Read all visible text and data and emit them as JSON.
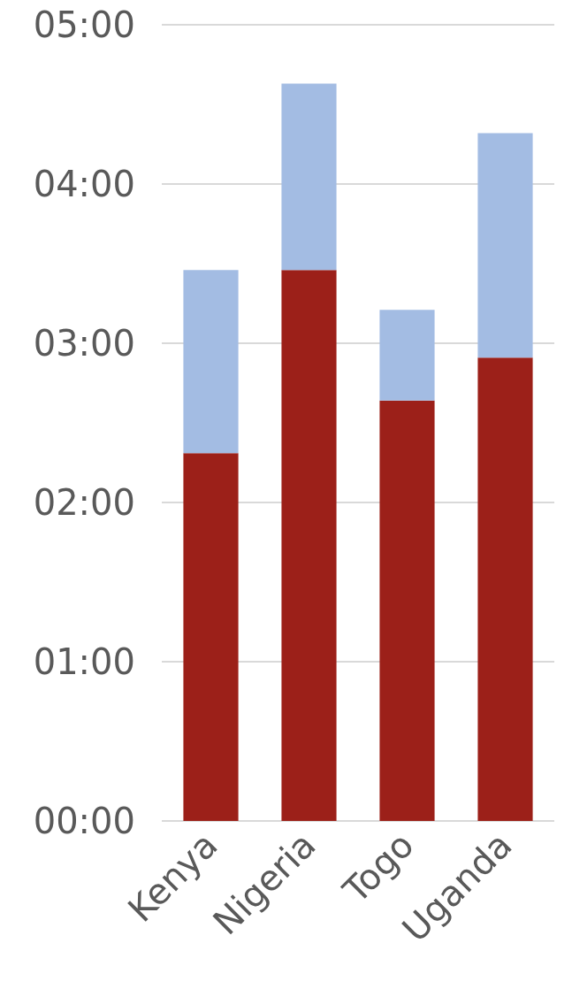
{
  "chart_data": {
    "type": "bar",
    "stacked": true,
    "categories": [
      "Kenya",
      "Nigeria",
      "Togo",
      "Uganda"
    ],
    "series": [
      {
        "color": "#9c2019",
        "values": [
          2.31,
          3.46,
          2.64,
          2.91
        ]
      },
      {
        "color": "#a3bce3",
        "values": [
          1.15,
          1.17,
          0.57,
          1.41
        ]
      }
    ],
    "ylim": [
      0,
      5
    ],
    "yticks": [
      {
        "value": 0,
        "label": "00:00"
      },
      {
        "value": 1,
        "label": "01:00"
      },
      {
        "value": 2,
        "label": "02:00"
      },
      {
        "value": 3,
        "label": "03:00"
      },
      {
        "value": 4,
        "label": "04:00"
      },
      {
        "value": 5,
        "label": "05:00"
      }
    ],
    "grid": "y"
  }
}
